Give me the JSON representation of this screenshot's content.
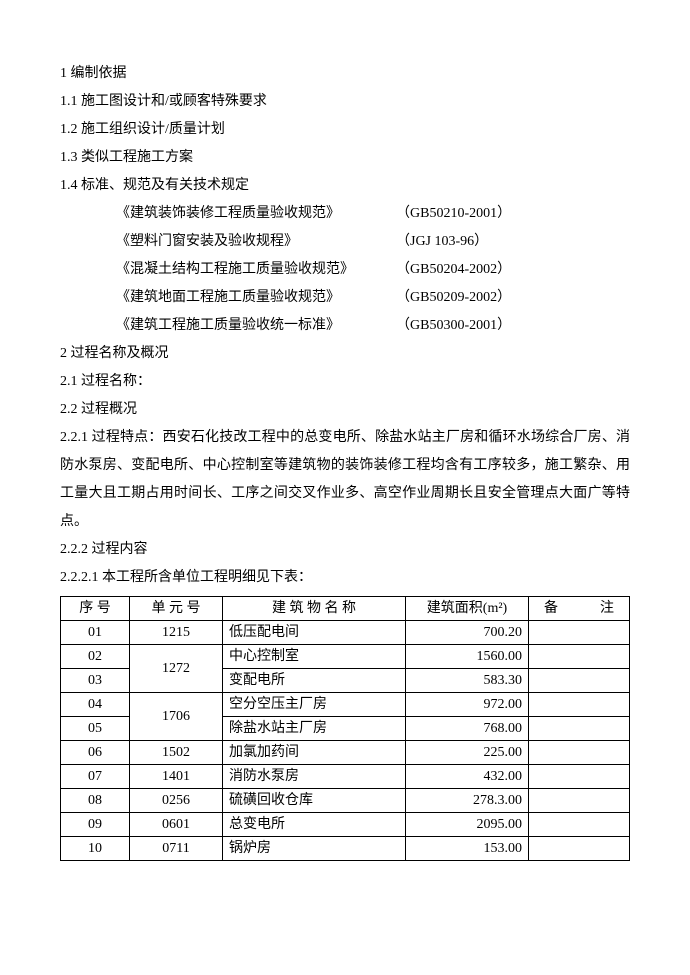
{
  "s1": {
    "h": "1 编制依据",
    "i1": "1.1 施工图设计和/或顾客特殊要求",
    "i2": "1.2 施工组织设计/质量计划",
    "i3": "1.3 类似工程施工方案",
    "i4": "1.4 标准、规范及有关技术规定",
    "standards": [
      {
        "name": "《建筑装饰装修工程质量验收规范》",
        "code": "（GB50210-2001）"
      },
      {
        "name": "《塑料门窗安装及验收规程》",
        "code": "（JGJ 103-96）"
      },
      {
        "name": "《混凝土结构工程施工质量验收规范》",
        "code": "（GB50204-2002）"
      },
      {
        "name": "《建筑地面工程施工质量验收规范》",
        "code": "（GB50209-2002）"
      },
      {
        "name": "《建筑工程施工质量验收统一标准》",
        "code": "（GB50300-2001）"
      }
    ]
  },
  "s2": {
    "h": "2 过程名称及概况",
    "i1": "2.1 过程名称：",
    "i2": "2.2 过程概况",
    "i21": "2.2.1 过程特点：西安石化技改工程中的总变电所、除盐水站主厂房和循环水场综合厂房、消防水泵房、变配电所、中心控制室等建筑物的装饰装修工程均含有工序较多，施工繁杂、用工量大且工期占用时间长、工序之间交叉作业多、高空作业周期长且安全管理点大面广等特点。",
    "i22": "2.2.2 过程内容",
    "i221": "2.2.2.1 本工程所含单位工程明细见下表："
  },
  "table": {
    "headers": {
      "seq": "序 号",
      "unit": "单 元 号",
      "name": "建 筑 物 名 称",
      "area": "建筑面积(m²)",
      "note": "备　　　注"
    },
    "rows": [
      {
        "seq": "01",
        "unit": "1215",
        "name": "低压配电间",
        "area": "700.20",
        "note": "",
        "unitRowspan": 1
      },
      {
        "seq": "02",
        "unit": "1272",
        "name": "中心控制室",
        "area": "1560.00",
        "note": "",
        "unitRowspan": 2
      },
      {
        "seq": "03",
        "unit": null,
        "name": "变配电所",
        "area": "583.30",
        "note": ""
      },
      {
        "seq": "04",
        "unit": "1706",
        "name": "空分空压主厂房",
        "area": "972.00",
        "note": "",
        "unitRowspan": 2
      },
      {
        "seq": "05",
        "unit": null,
        "name": "除盐水站主厂房",
        "area": "768.00",
        "note": ""
      },
      {
        "seq": "06",
        "unit": "1502",
        "name": "加氯加药间",
        "area": "225.00",
        "note": "",
        "unitRowspan": 1
      },
      {
        "seq": "07",
        "unit": "1401",
        "name": "消防水泵房",
        "area": "432.00",
        "note": "",
        "unitRowspan": 1
      },
      {
        "seq": "08",
        "unit": "0256",
        "name": "硫磺回收仓库",
        "area": "278.3.00",
        "note": "",
        "unitRowspan": 1
      },
      {
        "seq": "09",
        "unit": "0601",
        "name": "总变电所",
        "area": "2095.00",
        "note": "",
        "unitRowspan": 1
      },
      {
        "seq": "10",
        "unit": "0711",
        "name": "锅炉房",
        "area": "153.00",
        "note": "",
        "unitRowspan": 1
      }
    ]
  }
}
